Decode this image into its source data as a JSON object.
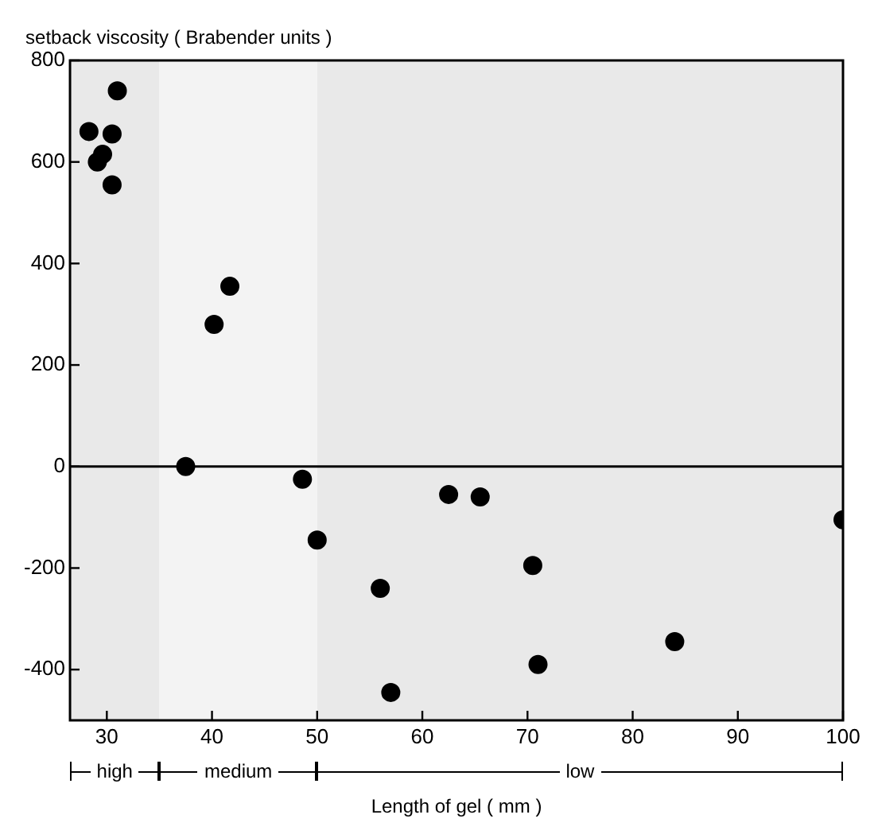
{
  "chart_data": {
    "type": "scatter",
    "ylabel": "setback viscosity ( Brabender units )",
    "xlabel": "Length of gel ( mm )",
    "x": [
      28.3,
      31,
      30.5,
      29.1,
      29.6,
      30.5,
      41.7,
      40.2,
      37.5,
      48.6,
      50,
      56,
      57,
      62.5,
      65.5,
      70.5,
      71,
      84,
      100
    ],
    "series": [
      {
        "color": "#000000",
        "values": [
          660,
          740,
          655,
          600,
          615,
          555,
          355,
          280,
          0,
          -25,
          -145,
          -240,
          -445,
          -55,
          -60,
          -195,
          -390,
          -345,
          -105
        ]
      }
    ],
    "xlim": [
      26.5,
      100
    ],
    "xticks": [
      30,
      40,
      50,
      60,
      70,
      80,
      90,
      100
    ],
    "ylim": [
      -500,
      800
    ],
    "yticks": [
      -400,
      -200,
      0,
      200,
      400,
      600,
      800
    ],
    "ref_lines": [
      {
        "axis": "y",
        "value": 0
      }
    ],
    "bands": [
      {
        "axis": "x",
        "from": 26.5,
        "to": 35,
        "label": "high"
      },
      {
        "axis": "x",
        "from": 35,
        "to": 50,
        "label": "medium"
      },
      {
        "axis": "x",
        "from": 50,
        "to": 100,
        "label": "low"
      }
    ],
    "marker": "circle",
    "grid": false,
    "legend": false
  }
}
